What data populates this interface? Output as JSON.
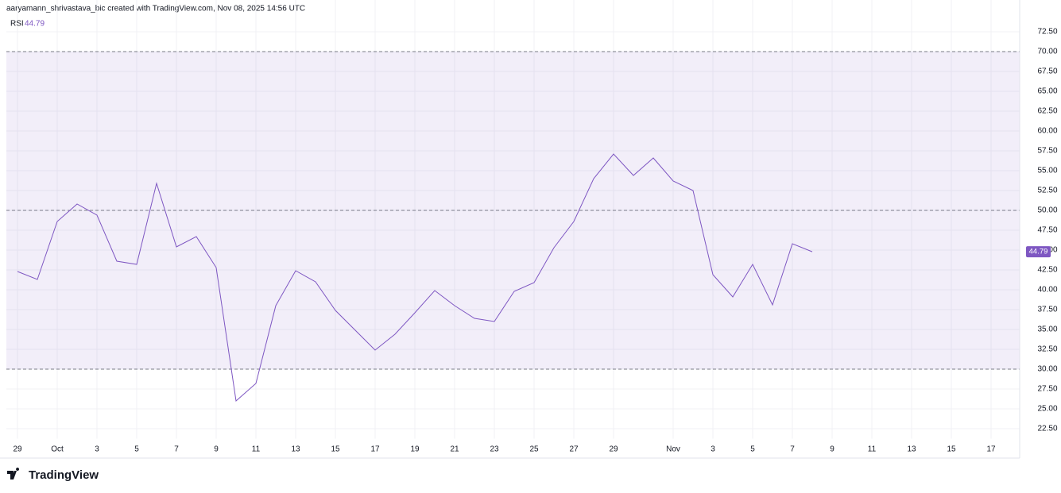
{
  "header": "aaryamann_shrivastava_bic created with TradingView.com, Nov 08, 2025 14:56 UTC",
  "logo": "TradingView",
  "chart_data": {
    "type": "line",
    "categories": [
      "29",
      null,
      "Oct",
      null,
      "3",
      null,
      "5",
      null,
      "7",
      null,
      "9",
      null,
      "11",
      null,
      "13",
      null,
      "15",
      null,
      "17",
      null,
      "19",
      null,
      "21",
      null,
      "23",
      null,
      "25",
      null,
      "27",
      null,
      "29",
      null,
      null,
      "Nov",
      null,
      "3",
      null,
      "5",
      null,
      "7",
      null,
      "9",
      null,
      "11",
      null,
      "13",
      null,
      "15",
      null,
      "17"
    ],
    "series": [
      {
        "name": "RSI",
        "color": "#7e57c2",
        "values": [
          42.3,
          41.3,
          48.6,
          50.8,
          49.4,
          43.6,
          43.2,
          53.4,
          45.4,
          46.7,
          42.8,
          26.0,
          28.2,
          38.0,
          42.4,
          41.0,
          37.4,
          34.9,
          32.4,
          34.4,
          37.1,
          39.9,
          38.0,
          36.4,
          36.0,
          39.8,
          40.9,
          45.3,
          48.6,
          54.0,
          57.1,
          54.4,
          56.6,
          53.7,
          52.5,
          41.9,
          39.1,
          43.2,
          38.1,
          45.8,
          44.79,
          null,
          null,
          null,
          null,
          null,
          null,
          null,
          null,
          null
        ]
      }
    ],
    "ylim": [
      21.25,
      75
    ],
    "yticks": [
      {
        "value": 22.5,
        "label": "22.50"
      },
      {
        "value": 25,
        "label": "25.00"
      },
      {
        "value": 27.5,
        "label": "27.50"
      },
      {
        "value": 30,
        "label": "30.00"
      },
      {
        "value": 32.5,
        "label": "32.50"
      },
      {
        "value": 35,
        "label": "35.00"
      },
      {
        "value": 37.5,
        "label": "37.50"
      },
      {
        "value": 40,
        "label": "40.00"
      },
      {
        "value": 42.5,
        "label": "42.50"
      },
      {
        "value": 45,
        "label": "45.00"
      },
      {
        "value": 47.5,
        "label": "47.50"
      },
      {
        "value": 50,
        "label": "50.00"
      },
      {
        "value": 52.5,
        "label": "52.50"
      },
      {
        "value": 55,
        "label": "55.00"
      },
      {
        "value": 57.5,
        "label": "57.50"
      },
      {
        "value": 60,
        "label": "60.00"
      },
      {
        "value": 62.5,
        "label": "62.50"
      },
      {
        "value": 65,
        "label": "65.00"
      },
      {
        "value": 67.5,
        "label": "67.50"
      },
      {
        "value": 70,
        "label": "70.00"
      },
      {
        "value": 72.5,
        "label": "72.50"
      }
    ],
    "hlines": [
      30,
      50,
      70
    ],
    "band_color": "#7e57c2",
    "grid": true
  }
}
